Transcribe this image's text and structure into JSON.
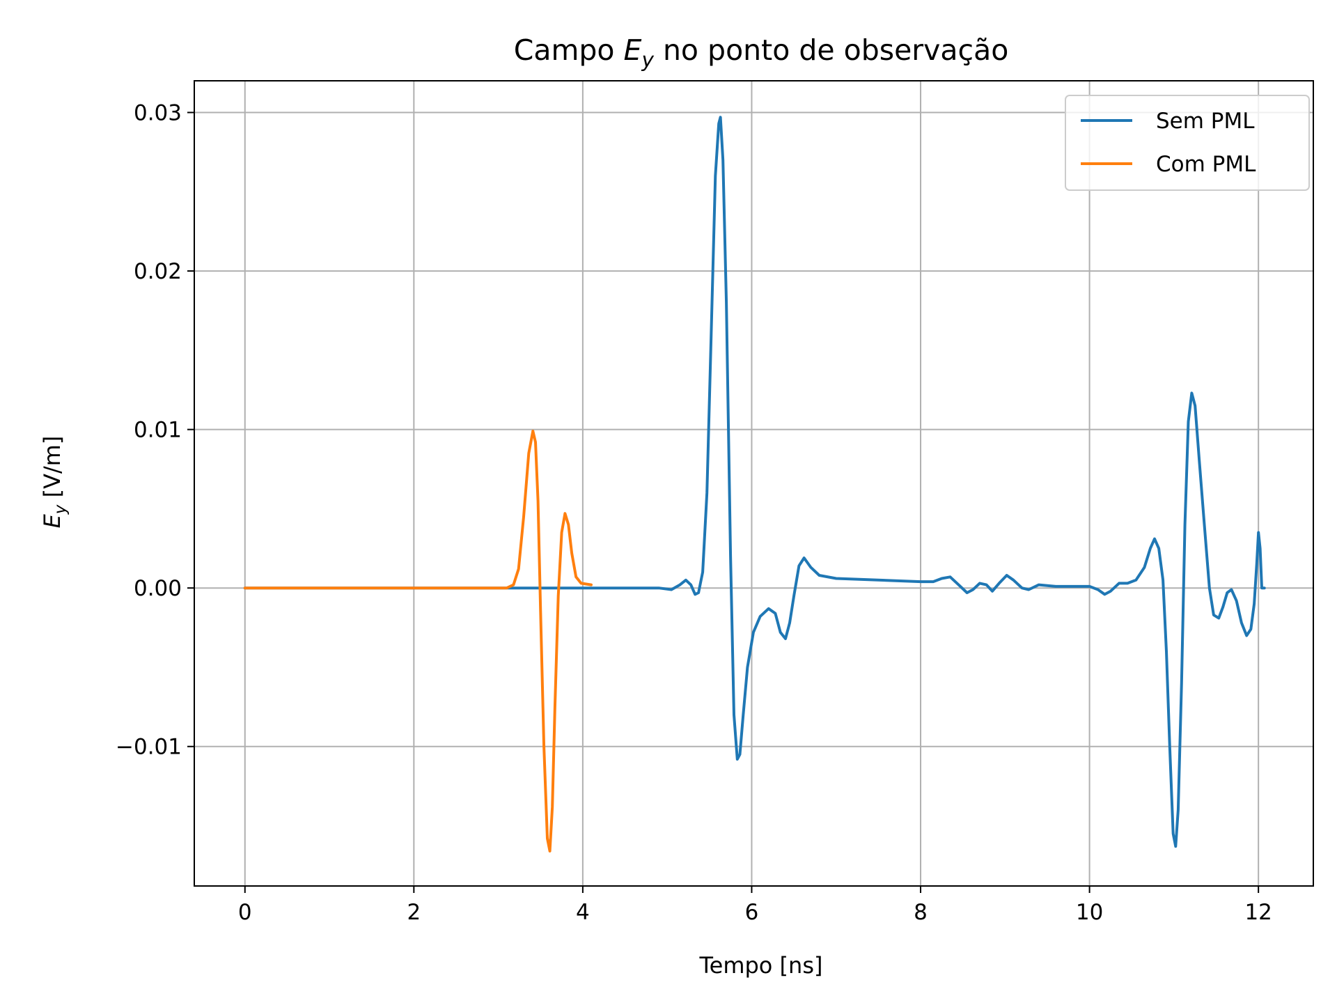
{
  "chart_data": {
    "type": "line",
    "title": {
      "pre": "Campo ",
      "symbol": "E",
      "subscript": "y",
      "post": " no ponto de observação"
    },
    "xlabel": "Tempo [ns]",
    "ylabel": {
      "symbol": "E",
      "subscript": "y",
      "post": " [V/m]"
    },
    "xlim": [
      -0.6,
      12.65
    ],
    "ylim": [
      -0.0188,
      0.032
    ],
    "xticks": [
      0,
      2,
      4,
      6,
      8,
      10,
      12
    ],
    "xtick_labels": [
      "0",
      "2",
      "4",
      "6",
      "8",
      "10",
      "12"
    ],
    "yticks": [
      -0.01,
      0.0,
      0.01,
      0.02,
      0.03
    ],
    "ytick_labels": [
      "−0.01",
      "0.00",
      "0.01",
      "0.02",
      "0.03"
    ],
    "grid": true,
    "legend_position": "top-right",
    "series": [
      {
        "name": "Sem PML",
        "color": "#1f77b4",
        "points": [
          [
            0,
            0
          ],
          [
            4.9,
            0
          ],
          [
            5.05,
            -0.0001
          ],
          [
            5.15,
            0.0002
          ],
          [
            5.22,
            0.0005
          ],
          [
            5.28,
            0.0002
          ],
          [
            5.33,
            -0.0004
          ],
          [
            5.37,
            -0.0003
          ],
          [
            5.42,
            0.001
          ],
          [
            5.47,
            0.006
          ],
          [
            5.52,
            0.016
          ],
          [
            5.57,
            0.026
          ],
          [
            5.61,
            0.0293
          ],
          [
            5.63,
            0.0297
          ],
          [
            5.66,
            0.027
          ],
          [
            5.7,
            0.018
          ],
          [
            5.75,
            0.002
          ],
          [
            5.79,
            -0.008
          ],
          [
            5.83,
            -0.0108
          ],
          [
            5.86,
            -0.0105
          ],
          [
            5.9,
            -0.008
          ],
          [
            5.95,
            -0.005
          ],
          [
            6.02,
            -0.0028
          ],
          [
            6.1,
            -0.0018
          ],
          [
            6.2,
            -0.0013
          ],
          [
            6.28,
            -0.0016
          ],
          [
            6.34,
            -0.0028
          ],
          [
            6.4,
            -0.0032
          ],
          [
            6.45,
            -0.0022
          ],
          [
            6.5,
            -0.0005
          ],
          [
            6.56,
            0.0014
          ],
          [
            6.62,
            0.0019
          ],
          [
            6.7,
            0.0013
          ],
          [
            6.8,
            0.0008
          ],
          [
            7.0,
            0.0006
          ],
          [
            8.0,
            0.0004
          ],
          [
            8.15,
            0.0004
          ],
          [
            8.25,
            0.0006
          ],
          [
            8.35,
            0.0007
          ],
          [
            8.45,
            0.0002
          ],
          [
            8.55,
            -0.0003
          ],
          [
            8.62,
            -0.0001
          ],
          [
            8.7,
            0.0003
          ],
          [
            8.78,
            0.0002
          ],
          [
            8.85,
            -0.0002
          ],
          [
            8.93,
            0.0003
          ],
          [
            9.02,
            0.0008
          ],
          [
            9.1,
            0.0005
          ],
          [
            9.2,
            0.0
          ],
          [
            9.28,
            -0.0001
          ],
          [
            9.4,
            0.0002
          ],
          [
            9.6,
            0.0001
          ],
          [
            10.0,
            0.0001
          ],
          [
            10.1,
            -0.0001
          ],
          [
            10.18,
            -0.0004
          ],
          [
            10.25,
            -0.0002
          ],
          [
            10.35,
            0.0003
          ],
          [
            10.45,
            0.0003
          ],
          [
            10.55,
            0.0005
          ],
          [
            10.65,
            0.0013
          ],
          [
            10.72,
            0.0025
          ],
          [
            10.77,
            0.0031
          ],
          [
            10.82,
            0.0025
          ],
          [
            10.87,
            0.0005
          ],
          [
            10.91,
            -0.004
          ],
          [
            10.95,
            -0.01
          ],
          [
            10.99,
            -0.0155
          ],
          [
            11.02,
            -0.0163
          ],
          [
            11.05,
            -0.014
          ],
          [
            11.09,
            -0.006
          ],
          [
            11.13,
            0.004
          ],
          [
            11.17,
            0.0105
          ],
          [
            11.21,
            0.0123
          ],
          [
            11.25,
            0.0115
          ],
          [
            11.3,
            0.008
          ],
          [
            11.36,
            0.004
          ],
          [
            11.42,
            0.0
          ],
          [
            11.47,
            -0.0017
          ],
          [
            11.53,
            -0.0019
          ],
          [
            11.58,
            -0.0012
          ],
          [
            11.63,
            -0.0003
          ],
          [
            11.68,
            -0.0001
          ],
          [
            11.74,
            -0.0008
          ],
          [
            11.8,
            -0.0022
          ],
          [
            11.86,
            -0.003
          ],
          [
            11.91,
            -0.0026
          ],
          [
            11.95,
            -0.001
          ],
          [
            11.98,
            0.0015
          ],
          [
            12.0,
            0.0035
          ],
          [
            12.02,
            0.0025
          ],
          [
            12.04,
            0.0
          ],
          [
            12.07,
            0.0
          ]
        ]
      },
      {
        "name": "Com PML",
        "color": "#ff7f0e",
        "points": [
          [
            0,
            0
          ],
          [
            3.1,
            0
          ],
          [
            3.18,
            0.0002
          ],
          [
            3.24,
            0.0012
          ],
          [
            3.3,
            0.0045
          ],
          [
            3.36,
            0.0085
          ],
          [
            3.41,
            0.0099
          ],
          [
            3.44,
            0.0092
          ],
          [
            3.47,
            0.0055
          ],
          [
            3.5,
            -0.0015
          ],
          [
            3.54,
            -0.01
          ],
          [
            3.58,
            -0.0158
          ],
          [
            3.61,
            -0.0166
          ],
          [
            3.64,
            -0.0138
          ],
          [
            3.67,
            -0.0075
          ],
          [
            3.71,
            -0.0005
          ],
          [
            3.75,
            0.0035
          ],
          [
            3.79,
            0.0047
          ],
          [
            3.83,
            0.004
          ],
          [
            3.87,
            0.0022
          ],
          [
            3.92,
            0.0007
          ],
          [
            3.98,
            0.0003
          ],
          [
            4.1,
            0.0002
          ]
        ]
      }
    ]
  }
}
